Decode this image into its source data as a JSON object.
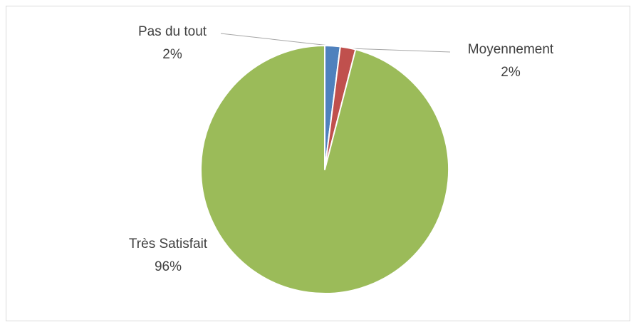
{
  "chart_data": {
    "type": "pie",
    "categories": [
      "Pas du tout",
      "Moyennement",
      "Très Satisfait"
    ],
    "values": [
      2,
      2,
      96
    ],
    "value_labels": [
      "2%",
      "2%",
      "96%"
    ],
    "colors": [
      "#4f81bd",
      "#c0504d",
      "#9bbb59"
    ]
  }
}
